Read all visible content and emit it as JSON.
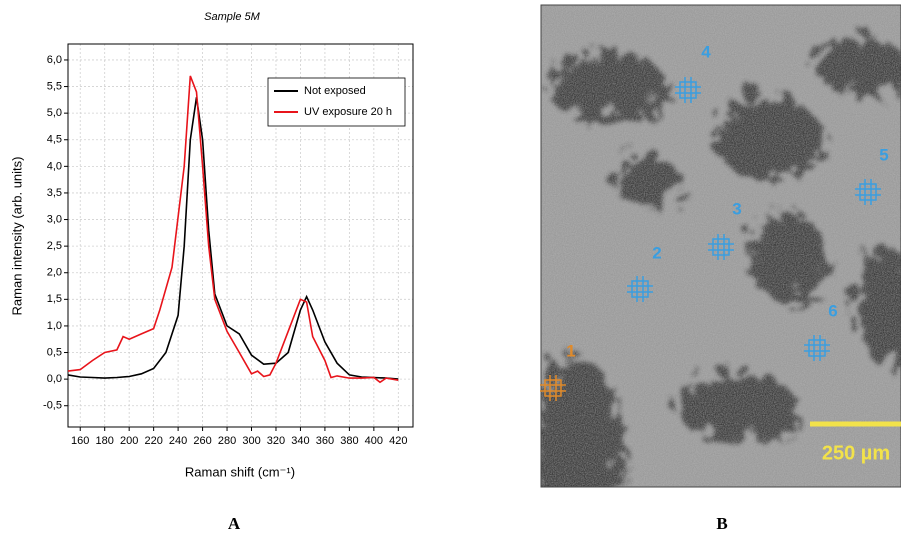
{
  "chart_data": {
    "type": "line",
    "title": "Sample 5M",
    "x_label": "Raman shift (cm⁻¹)",
    "y_label": "Raman intensity (arb. units)",
    "xlim": [
      150,
      432
    ],
    "ylim": [
      -0.9,
      6.3
    ],
    "xticks": [
      160,
      180,
      200,
      220,
      240,
      260,
      280,
      300,
      320,
      340,
      360,
      380,
      400,
      420
    ],
    "yticks": [
      {
        "value": -0.5,
        "label": "-0,5"
      },
      {
        "value": 0,
        "label": "0,0"
      },
      {
        "value": 0.5,
        "label": "0,5"
      },
      {
        "value": 1,
        "label": "1,0"
      },
      {
        "value": 1.5,
        "label": "1,5"
      },
      {
        "value": 2,
        "label": "2,0"
      },
      {
        "value": 2.5,
        "label": "2,5"
      },
      {
        "value": 3,
        "label": "3,0"
      },
      {
        "value": 3.5,
        "label": "3,5"
      },
      {
        "value": 4,
        "label": "4,0"
      },
      {
        "value": 4.5,
        "label": "4,5"
      },
      {
        "value": 5,
        "label": "5,0"
      },
      {
        "value": 5.5,
        "label": "5,5"
      },
      {
        "value": 6,
        "label": "6,0"
      }
    ],
    "grid": true,
    "legend": "upper right",
    "series": [
      {
        "name": "Not exposed",
        "color": "#000000",
        "x": [
          150,
          160,
          170,
          180,
          190,
          200,
          210,
          220,
          230,
          240,
          245,
          250,
          255,
          260,
          265,
          270,
          280,
          290,
          300,
          310,
          320,
          330,
          340,
          345,
          350,
          360,
          370,
          380,
          390,
          400,
          410,
          420
        ],
        "values": [
          0.08,
          0.04,
          0.03,
          0.02,
          0.03,
          0.05,
          0.1,
          0.2,
          0.5,
          1.2,
          2.5,
          4.5,
          5.3,
          4.5,
          2.8,
          1.6,
          1.0,
          0.85,
          0.45,
          0.28,
          0.3,
          0.5,
          1.3,
          1.55,
          1.3,
          0.7,
          0.3,
          0.08,
          0.04,
          0.03,
          0.02,
          0.0
        ]
      },
      {
        "name": "UV exposure 20 h",
        "color": "#e8141b",
        "x": [
          150,
          160,
          170,
          180,
          190,
          195,
          200,
          210,
          220,
          225,
          235,
          245,
          250,
          255,
          260,
          265,
          270,
          280,
          290,
          300,
          305,
          310,
          315,
          320,
          330,
          340,
          345,
          350,
          360,
          365,
          370,
          380,
          390,
          400,
          405,
          410,
          420
        ],
        "values": [
          0.15,
          0.18,
          0.35,
          0.5,
          0.55,
          0.8,
          0.75,
          0.85,
          0.95,
          1.3,
          2.1,
          4.0,
          5.7,
          5.4,
          4.0,
          2.5,
          1.5,
          0.9,
          0.5,
          0.1,
          0.15,
          0.05,
          0.08,
          0.3,
          0.9,
          1.5,
          1.45,
          0.8,
          0.35,
          0.03,
          0.06,
          0.02,
          0.02,
          0.03,
          -0.06,
          0.02,
          -0.02
        ]
      }
    ]
  },
  "image": {
    "markers": [
      "1",
      "2",
      "3",
      "4",
      "5",
      "6"
    ],
    "scale_bar": "250 µm"
  },
  "panel_labels": [
    "A",
    "B"
  ]
}
